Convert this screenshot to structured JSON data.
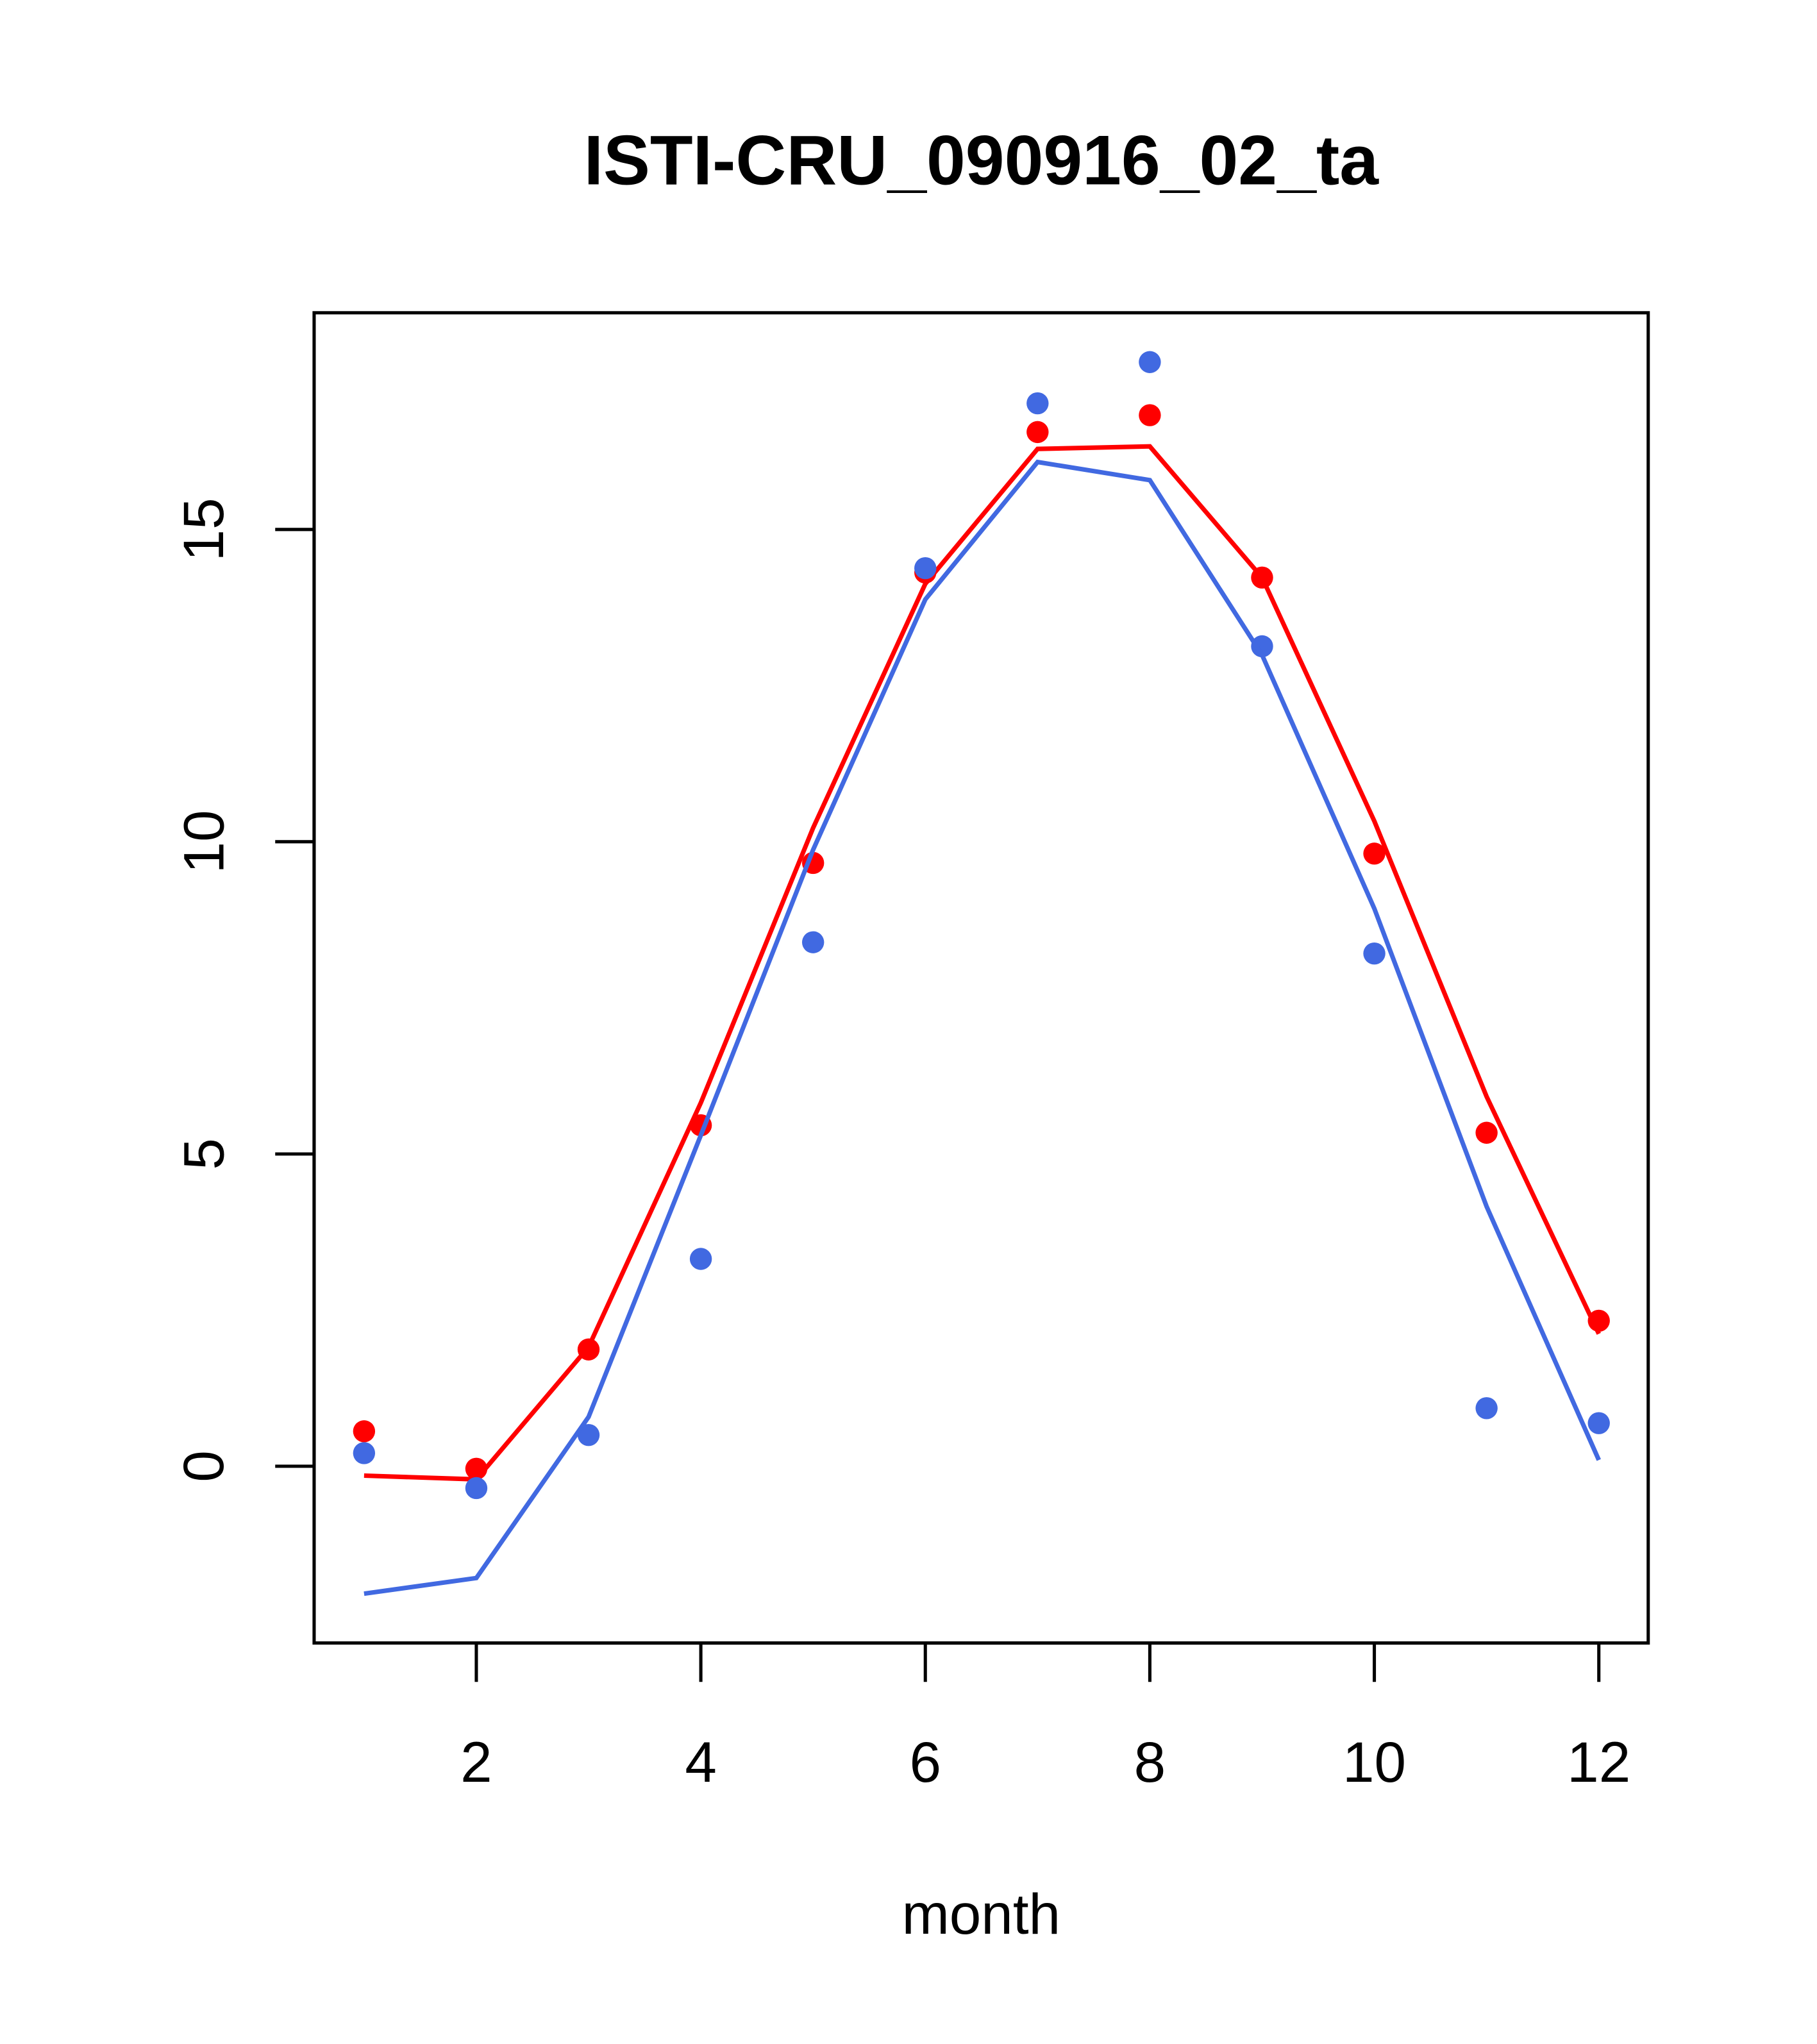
{
  "chart_data": {
    "type": "line",
    "title": "ISTI-CRU_090916_02_ta",
    "xlabel": "month",
    "ylabel": "",
    "xlim": [
      0.555,
      12.44
    ],
    "ylim": [
      -2.83,
      18.47
    ],
    "x_ticks": [
      2,
      4,
      6,
      8,
      10,
      12
    ],
    "x_tick_labels": [
      "2",
      "4",
      "6",
      "8",
      "10",
      "12"
    ],
    "y_ticks": [
      0,
      5,
      10,
      15
    ],
    "y_tick_labels": [
      "0",
      "5",
      "10",
      "15"
    ],
    "grid": false,
    "x": [
      1,
      2,
      3,
      4,
      5,
      6,
      7,
      8,
      9,
      10,
      11,
      12
    ],
    "series": [
      {
        "name": "red points",
        "kind": "points",
        "color": "#ff0000",
        "values": [
          0.56,
          -0.04,
          1.87,
          5.46,
          9.66,
          14.31,
          16.56,
          16.83,
          14.23,
          9.81,
          5.34,
          2.33
        ]
      },
      {
        "name": "red line",
        "kind": "line",
        "color": "#ff0000",
        "values": [
          -0.15,
          -0.21,
          1.91,
          5.82,
          10.22,
          14.13,
          16.29,
          16.33,
          14.23,
          10.33,
          5.92,
          2.12
        ]
      },
      {
        "name": "blue points",
        "kind": "points",
        "color": "#4169e1",
        "values": [
          0.21,
          -0.35,
          0.5,
          3.32,
          8.39,
          14.38,
          17.02,
          17.68,
          13.13,
          8.21,
          0.93,
          0.69
        ]
      },
      {
        "name": "blue line",
        "kind": "line",
        "color": "#4169e1",
        "values": [
          -2.04,
          -1.79,
          0.79,
          5.3,
          9.87,
          13.88,
          16.08,
          15.79,
          12.99,
          8.93,
          4.16,
          0.1
        ]
      }
    ]
  }
}
